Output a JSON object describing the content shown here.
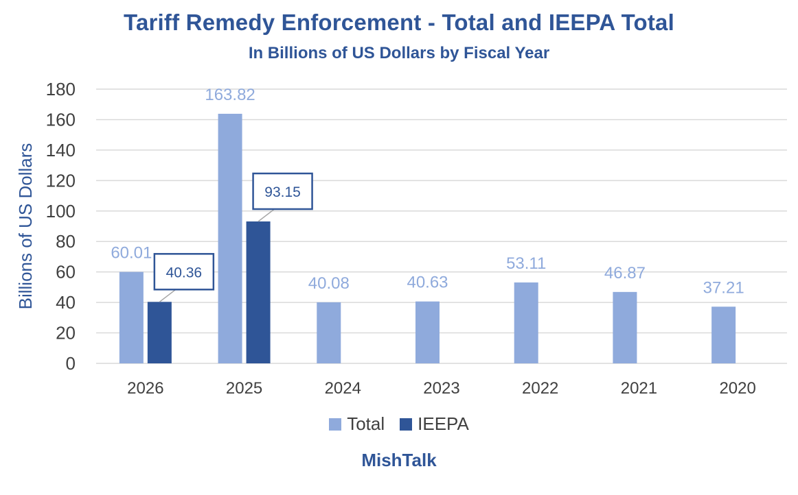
{
  "chart_data": {
    "type": "bar",
    "title": "Tariff Remedy Enforcement - Total and IEEPA Total",
    "subtitle": "In Billions of US Dollars by Fiscal Year",
    "xlabel": "",
    "ylabel": "Billions of US Dollars",
    "ylim": [
      0,
      180
    ],
    "yticks": [
      0,
      20,
      40,
      60,
      80,
      100,
      120,
      140,
      160,
      180
    ],
    "ytick_labels": [
      "0",
      "20",
      "40",
      "60",
      "80",
      "100",
      "120",
      "140",
      "160",
      "180"
    ],
    "categories": [
      "2026",
      "2025",
      "2024",
      "2023",
      "2022",
      "2021",
      "2020"
    ],
    "series": [
      {
        "name": "Total",
        "color": "#8FAADC",
        "values": [
          60.01,
          163.82,
          40.08,
          40.63,
          53.11,
          46.87,
          37.21
        ],
        "labels": [
          "60.01",
          "163.82",
          "40.08",
          "40.63",
          "53.11",
          "46.87",
          "37.21"
        ]
      },
      {
        "name": "IEEPA",
        "color": "#2F5597",
        "values": [
          40.36,
          93.15,
          null,
          null,
          null,
          null,
          null
        ],
        "labels": [
          "40.36",
          "93.15",
          null,
          null,
          null,
          null,
          null
        ]
      }
    ],
    "grid": true,
    "legend_position": "bottom",
    "source": "MishTalk"
  }
}
